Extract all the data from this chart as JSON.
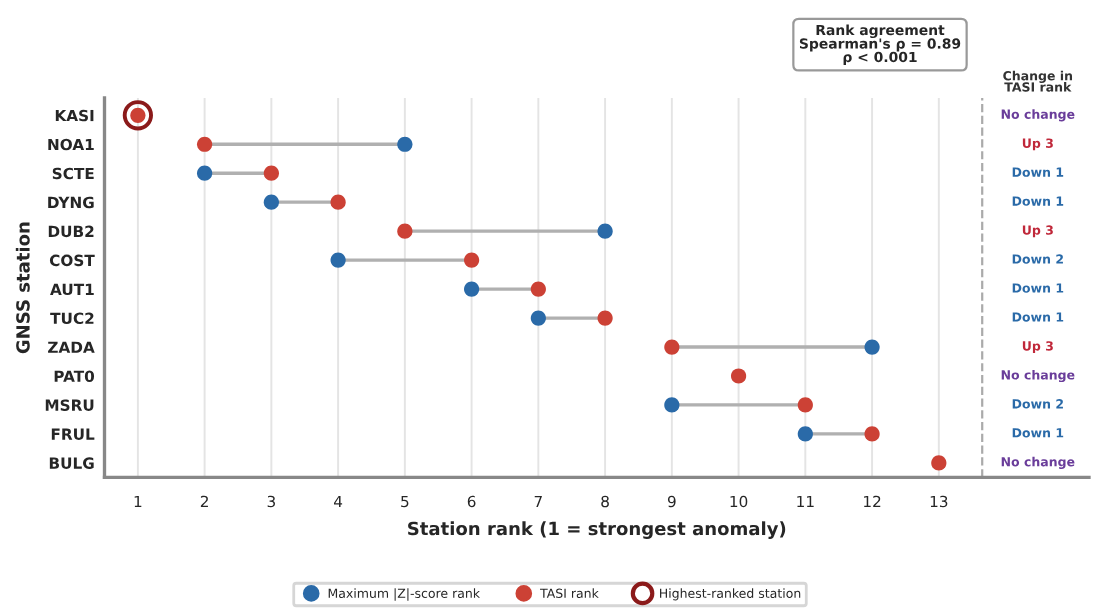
{
  "chart_data": {
    "type": "scatter",
    "orientation": "horizontal",
    "categories": [
      "KASI",
      "NOA1",
      "SCTE",
      "DYNG",
      "DUB2",
      "COST",
      "AUT1",
      "TUC2",
      "ZADA",
      "PAT0",
      "MSRU",
      "FRUL",
      "BULG"
    ],
    "series": [
      {
        "name": "Maximum |Z|-score rank",
        "color": "#2a6aa8",
        "values": [
          null,
          5,
          2,
          3,
          8,
          4,
          6,
          7,
          12,
          null,
          9,
          11,
          null
        ]
      },
      {
        "name": "TASI rank",
        "color": "#cc4135",
        "values": [
          1,
          2,
          3,
          4,
          5,
          6,
          7,
          8,
          9,
          10,
          11,
          12,
          13
        ]
      },
      {
        "name": "Highest-ranked station",
        "color": "#8b1a1a",
        "values": [
          1,
          null,
          null,
          null,
          null,
          null,
          null,
          null,
          null,
          null,
          null,
          null,
          null
        ]
      }
    ],
    "xlabel": "Station rank (1 = strongest anomaly)",
    "ylabel": "GNSS station",
    "xlim": [
      0.5,
      15.25
    ],
    "xticks": [
      1,
      2,
      3,
      4,
      5,
      6,
      7,
      8,
      9,
      10,
      11,
      12,
      13
    ],
    "grid": "x",
    "legend": "bottom",
    "marker": "circle",
    "ref_lines": [
      {
        "axis": "x",
        "value": 13.65,
        "line_style": "dashed",
        "color": "#aaaaaa"
      }
    ],
    "annotations": [
      "Rank agreement\nSpearman's ρ = 0.89\nρ < 0.001",
      "Change in\nTASI rank",
      "No change",
      "Up 3",
      "Down 1",
      "Down 1",
      "Up 3",
      "Down 2",
      "Down 1",
      "Down 1",
      "Up 3",
      "No change",
      "Down 2",
      "Down 1",
      "No change"
    ]
  }
}
